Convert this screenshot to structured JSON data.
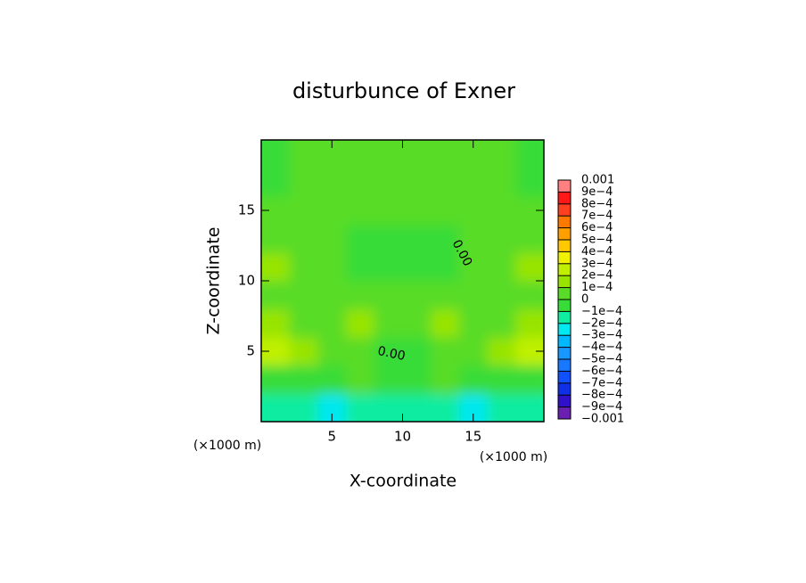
{
  "chart_data": {
    "type": "contour",
    "title": "disturbunce of Exner",
    "xlabel": "X-coordinate",
    "ylabel": "Z-coordinate",
    "xunit": "(×1000 m)",
    "yunit": "(×1000 m)",
    "xlim": [
      0,
      20
    ],
    "ylim": [
      0,
      20
    ],
    "xticks": [
      5,
      10,
      15
    ],
    "yticks": [
      5,
      10,
      15
    ],
    "contour_labels": [
      "0.00",
      "0.00"
    ],
    "field": {
      "x": [
        1,
        3,
        5,
        7,
        9,
        11,
        13,
        15,
        17,
        19
      ],
      "z": [
        1,
        3,
        5,
        7,
        9,
        11,
        13,
        15,
        17,
        19
      ],
      "values": [
        [
          -0.00015,
          -0.0002,
          -0.00025,
          -0.0002,
          -0.00015,
          -0.00015,
          -0.0002,
          -0.00025,
          -0.0002,
          -0.00015
        ],
        [
          -5e-05,
          -5e-05,
          -0.0001,
          1e-05,
          -5e-05,
          -5e-05,
          1e-05,
          -0.0001,
          -5e-05,
          -5e-05
        ],
        [
          0.00022,
          0.00012,
          5e-05,
          8e-05,
          -3e-05,
          -3e-05,
          8e-05,
          5e-05,
          0.00012,
          0.00022
        ],
        [
          0.00012,
          9e-05,
          7e-05,
          0.0001,
          6e-05,
          6e-05,
          0.0001,
          7e-05,
          9e-05,
          0.00012
        ],
        [
          8e-05,
          7e-05,
          6e-05,
          5e-05,
          5e-05,
          5e-05,
          5e-05,
          6e-05,
          7e-05,
          8e-05
        ],
        [
          0.00012,
          8e-05,
          4e-05,
          -2e-05,
          -3e-05,
          -3e-05,
          -2e-05,
          4e-05,
          8e-05,
          0.00012
        ],
        [
          8e-05,
          6e-05,
          3e-05,
          -1e-05,
          -2e-05,
          -2e-05,
          -1e-05,
          3e-05,
          6e-05,
          8e-05
        ],
        [
          5e-05,
          5e-05,
          5e-05,
          5e-05,
          5e-05,
          5e-05,
          5e-05,
          5e-05,
          5e-05,
          5e-05
        ],
        [
          -1e-05,
          2e-05,
          5e-05,
          6e-05,
          7e-05,
          7e-05,
          6e-05,
          5e-05,
          2e-05,
          -1e-05
        ],
        [
          -2e-05,
          1e-05,
          4e-05,
          6e-05,
          7e-05,
          7e-05,
          6e-05,
          4e-05,
          1e-05,
          -2e-05
        ]
      ]
    },
    "colorbar": {
      "lim": [
        -0.001,
        0.001
      ],
      "ticks": [
        {
          "value": -0.001,
          "label": "−0.001"
        },
        {
          "value": -0.0009,
          "label": "−9e−4"
        },
        {
          "value": -0.0008,
          "label": "−8e−4"
        },
        {
          "value": -0.0007,
          "label": "−7e−4"
        },
        {
          "value": -0.0006,
          "label": "−6e−4"
        },
        {
          "value": -0.0005,
          "label": "−5e−4"
        },
        {
          "value": -0.0004,
          "label": "−4e−4"
        },
        {
          "value": -0.0003,
          "label": "−3e−4"
        },
        {
          "value": -0.0002,
          "label": "−2e−4"
        },
        {
          "value": -0.0001,
          "label": "−1e−4"
        },
        0,
        {
          "value": 0.0001,
          "label": "1e−4"
        },
        {
          "value": 0.0002,
          "label": "2e−4"
        },
        {
          "value": 0.0003,
          "label": "3e−4"
        },
        {
          "value": 0.0004,
          "label": "4e−4"
        },
        {
          "value": 0.0005,
          "label": "5e−4"
        },
        {
          "value": 0.0006,
          "label": "6e−4"
        },
        {
          "value": 0.0007,
          "label": "7e−4"
        },
        {
          "value": 0.0008,
          "label": "8e−4"
        },
        {
          "value": 0.0009,
          "label": "9e−4"
        },
        0.001
      ],
      "colors": [
        "#6a1fb0",
        "#3010c8",
        "#1030e8",
        "#1050ff",
        "#1878ff",
        "#1898ff",
        "#00b8ff",
        "#00e8f0",
        "#10eca0",
        "#38dc38",
        "#58dc28",
        "#98e400",
        "#c0f000",
        "#f0f000",
        "#ffc800",
        "#ffa000",
        "#ff7800",
        "#ff4020",
        "#ff1818",
        "#ff8080"
      ]
    }
  }
}
